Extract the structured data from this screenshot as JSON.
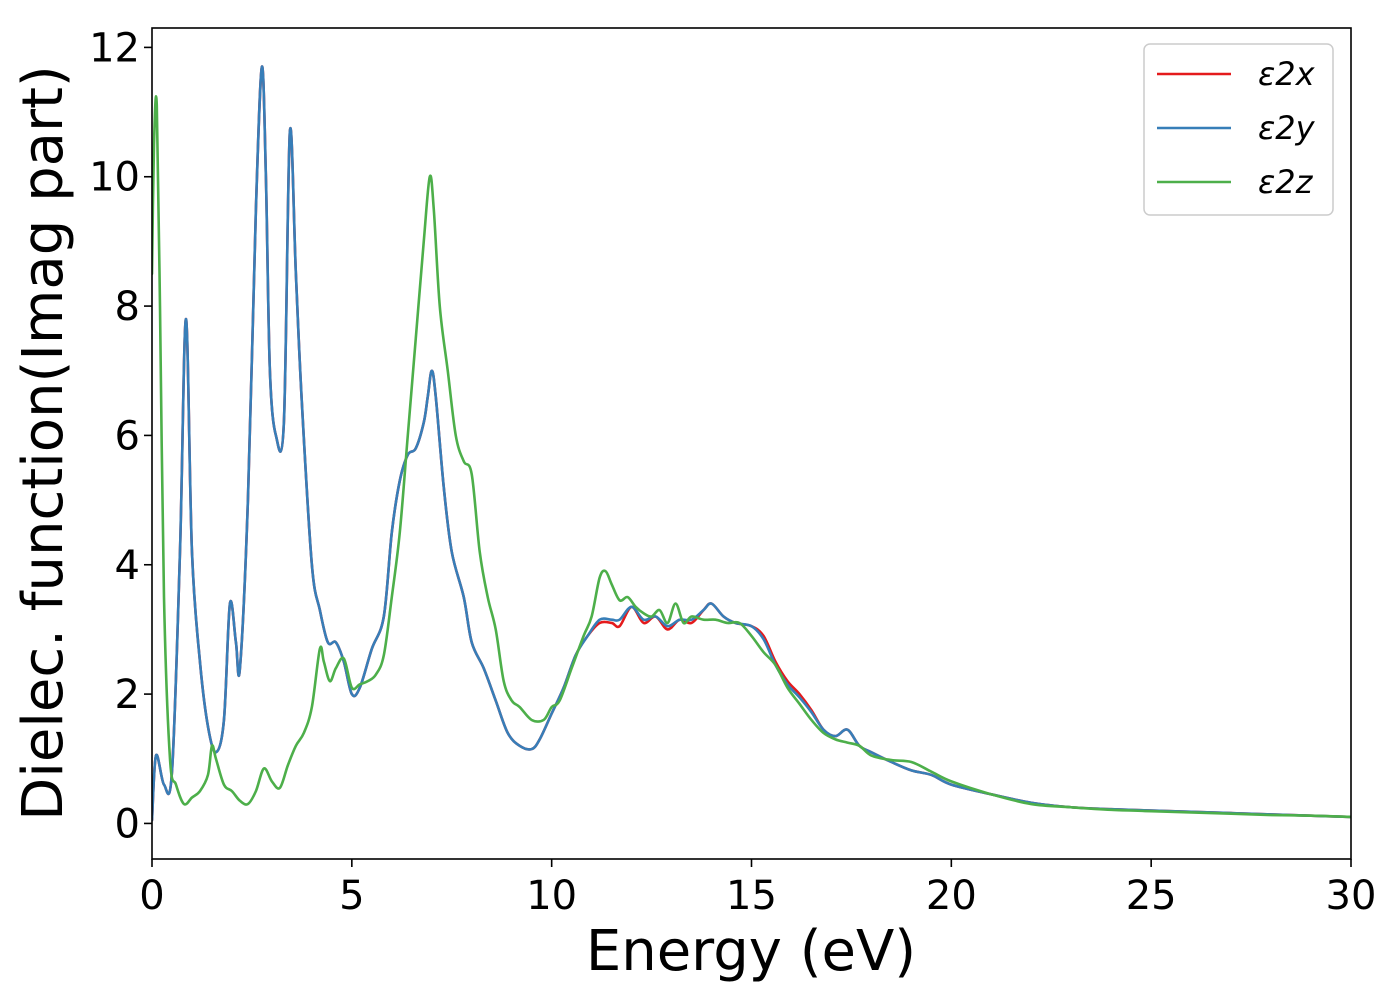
{
  "chart_data": {
    "type": "line",
    "xlabel": "Energy (eV)",
    "ylabel": "Dielec. function(Imag part)",
    "xlim": [
      0,
      30
    ],
    "ylim": [
      -0.55,
      12.3
    ],
    "xticks": [
      0,
      5,
      10,
      15,
      20,
      25,
      30
    ],
    "yticks": [
      0,
      2,
      4,
      6,
      8,
      10,
      12
    ],
    "grid": false,
    "legend_position": "top-right",
    "series": [
      {
        "name": "ε2x",
        "color": "#e41a1c",
        "x": [
          0,
          0.1,
          0.3,
          0.5,
          0.7,
          0.85,
          1.0,
          1.2,
          1.4,
          1.6,
          1.8,
          1.95,
          2.1,
          2.2,
          2.4,
          2.6,
          2.75,
          2.85,
          2.95,
          3.1,
          3.3,
          3.45,
          3.6,
          3.75,
          4.0,
          4.2,
          4.4,
          4.6,
          4.8,
          5.0,
          5.2,
          5.5,
          5.8,
          6.0,
          6.2,
          6.4,
          6.6,
          6.8,
          6.9,
          7.0,
          7.1,
          7.3,
          7.5,
          7.8,
          8.0,
          8.3,
          8.6,
          8.9,
          9.2,
          9.5,
          9.7,
          10.0,
          10.3,
          10.6,
          10.9,
          11.2,
          11.5,
          11.7,
          12.0,
          12.3,
          12.6,
          12.9,
          13.2,
          13.5,
          13.8,
          14.0,
          14.3,
          14.6,
          15.0,
          15.3,
          15.6,
          15.9,
          16.2,
          16.5,
          16.8,
          17.1,
          17.4,
          17.7,
          18.0,
          18.5,
          19.0,
          19.5,
          20.0,
          21.0,
          22.0,
          23.0,
          24.0,
          25.0,
          26.0,
          27.0,
          28.0,
          29.0,
          30.0
        ],
        "values": [
          0.05,
          1.05,
          0.6,
          0.8,
          4.2,
          7.8,
          4.2,
          2.5,
          1.5,
          1.1,
          1.6,
          3.4,
          2.8,
          2.4,
          5.0,
          9.5,
          11.7,
          10.0,
          7.0,
          6.0,
          6.2,
          10.7,
          8.5,
          6.5,
          4.0,
          3.3,
          2.8,
          2.8,
          2.5,
          2.0,
          2.1,
          2.7,
          3.2,
          4.5,
          5.3,
          5.7,
          5.8,
          6.2,
          6.6,
          7.0,
          6.6,
          5.2,
          4.2,
          3.5,
          2.8,
          2.4,
          1.9,
          1.4,
          1.2,
          1.15,
          1.3,
          1.7,
          2.1,
          2.6,
          2.9,
          3.1,
          3.1,
          3.05,
          3.35,
          3.1,
          3.2,
          3.0,
          3.15,
          3.1,
          3.3,
          3.4,
          3.2,
          3.1,
          3.05,
          2.9,
          2.5,
          2.2,
          2.0,
          1.75,
          1.45,
          1.35,
          1.45,
          1.2,
          1.1,
          0.95,
          0.82,
          0.75,
          0.6,
          0.45,
          0.32,
          0.25,
          0.22,
          0.2,
          0.18,
          0.16,
          0.14,
          0.12,
          0.1
        ]
      },
      {
        "name": "ε2y",
        "color": "#377eb8",
        "x": [
          0,
          0.1,
          0.3,
          0.5,
          0.7,
          0.85,
          1.0,
          1.2,
          1.4,
          1.6,
          1.8,
          1.95,
          2.1,
          2.2,
          2.4,
          2.6,
          2.75,
          2.85,
          2.95,
          3.1,
          3.3,
          3.45,
          3.6,
          3.75,
          4.0,
          4.2,
          4.4,
          4.6,
          4.8,
          5.0,
          5.2,
          5.5,
          5.8,
          6.0,
          6.2,
          6.4,
          6.6,
          6.8,
          6.9,
          7.0,
          7.1,
          7.3,
          7.5,
          7.8,
          8.0,
          8.3,
          8.6,
          8.9,
          9.2,
          9.5,
          9.7,
          10.0,
          10.3,
          10.6,
          10.9,
          11.2,
          11.5,
          11.7,
          12.0,
          12.3,
          12.6,
          12.9,
          13.2,
          13.5,
          13.8,
          14.0,
          14.3,
          14.6,
          15.0,
          15.3,
          15.6,
          15.9,
          16.2,
          16.5,
          16.8,
          17.1,
          17.4,
          17.7,
          18.0,
          18.5,
          19.0,
          19.5,
          20.0,
          21.0,
          22.0,
          23.0,
          24.0,
          25.0,
          26.0,
          27.0,
          28.0,
          29.0,
          30.0
        ],
        "values": [
          0.05,
          1.05,
          0.6,
          0.8,
          4.2,
          7.8,
          4.2,
          2.5,
          1.5,
          1.1,
          1.6,
          3.4,
          2.8,
          2.4,
          5.0,
          9.5,
          11.7,
          10.0,
          7.0,
          6.0,
          6.2,
          10.7,
          8.5,
          6.5,
          4.0,
          3.3,
          2.8,
          2.8,
          2.5,
          2.0,
          2.1,
          2.7,
          3.2,
          4.5,
          5.3,
          5.7,
          5.8,
          6.2,
          6.6,
          7.0,
          6.6,
          5.2,
          4.2,
          3.5,
          2.8,
          2.4,
          1.9,
          1.4,
          1.2,
          1.15,
          1.3,
          1.7,
          2.1,
          2.6,
          2.9,
          3.15,
          3.15,
          3.15,
          3.35,
          3.15,
          3.2,
          3.05,
          3.15,
          3.15,
          3.3,
          3.4,
          3.2,
          3.1,
          3.05,
          2.85,
          2.45,
          2.15,
          1.95,
          1.72,
          1.45,
          1.35,
          1.45,
          1.2,
          1.1,
          0.95,
          0.82,
          0.75,
          0.6,
          0.45,
          0.32,
          0.25,
          0.22,
          0.2,
          0.18,
          0.16,
          0.14,
          0.12,
          0.1
        ]
      },
      {
        "name": "ε2z",
        "color": "#4daf4a",
        "x": [
          0,
          0.05,
          0.12,
          0.2,
          0.3,
          0.45,
          0.6,
          0.8,
          1.0,
          1.2,
          1.4,
          1.5,
          1.6,
          1.8,
          2.0,
          2.2,
          2.4,
          2.6,
          2.8,
          3.0,
          3.2,
          3.4,
          3.6,
          3.8,
          4.0,
          4.2,
          4.3,
          4.45,
          4.6,
          4.8,
          5.0,
          5.2,
          5.4,
          5.6,
          5.8,
          6.0,
          6.2,
          6.4,
          6.6,
          6.8,
          6.95,
          7.05,
          7.2,
          7.4,
          7.6,
          7.8,
          8.0,
          8.2,
          8.4,
          8.6,
          8.8,
          9.0,
          9.2,
          9.5,
          9.8,
          10.0,
          10.2,
          10.5,
          10.8,
          11.0,
          11.2,
          11.35,
          11.5,
          11.7,
          11.9,
          12.1,
          12.3,
          12.5,
          12.7,
          12.9,
          13.1,
          13.3,
          13.5,
          13.8,
          14.1,
          14.4,
          14.7,
          15.0,
          15.3,
          15.6,
          15.9,
          16.2,
          16.5,
          16.8,
          17.1,
          17.4,
          17.7,
          18.0,
          18.5,
          19.0,
          19.5,
          20.0,
          21.0,
          22.0,
          23.0,
          24.0,
          25.0,
          26.0,
          27.0,
          28.0,
          29.0,
          30.0
        ],
        "values": [
          8.5,
          10.5,
          11.1,
          8.0,
          3.5,
          1.0,
          0.6,
          0.3,
          0.4,
          0.5,
          0.75,
          1.2,
          1.0,
          0.6,
          0.5,
          0.35,
          0.3,
          0.5,
          0.85,
          0.65,
          0.55,
          0.9,
          1.2,
          1.4,
          1.8,
          2.7,
          2.5,
          2.2,
          2.4,
          2.55,
          2.1,
          2.15,
          2.2,
          2.3,
          2.6,
          3.5,
          4.5,
          6.0,
          7.5,
          9.0,
          10.0,
          9.5,
          8.0,
          7.0,
          6.0,
          5.6,
          5.4,
          4.2,
          3.5,
          3.0,
          2.2,
          1.9,
          1.8,
          1.6,
          1.6,
          1.8,
          1.9,
          2.4,
          2.9,
          3.2,
          3.8,
          3.9,
          3.7,
          3.45,
          3.5,
          3.35,
          3.25,
          3.2,
          3.3,
          3.1,
          3.4,
          3.1,
          3.2,
          3.15,
          3.15,
          3.1,
          3.1,
          2.9,
          2.65,
          2.45,
          2.1,
          1.85,
          1.6,
          1.4,
          1.3,
          1.25,
          1.2,
          1.05,
          0.98,
          0.95,
          0.8,
          0.65,
          0.45,
          0.3,
          0.25,
          0.21,
          0.19,
          0.17,
          0.15,
          0.13,
          0.12,
          0.1
        ]
      }
    ]
  }
}
